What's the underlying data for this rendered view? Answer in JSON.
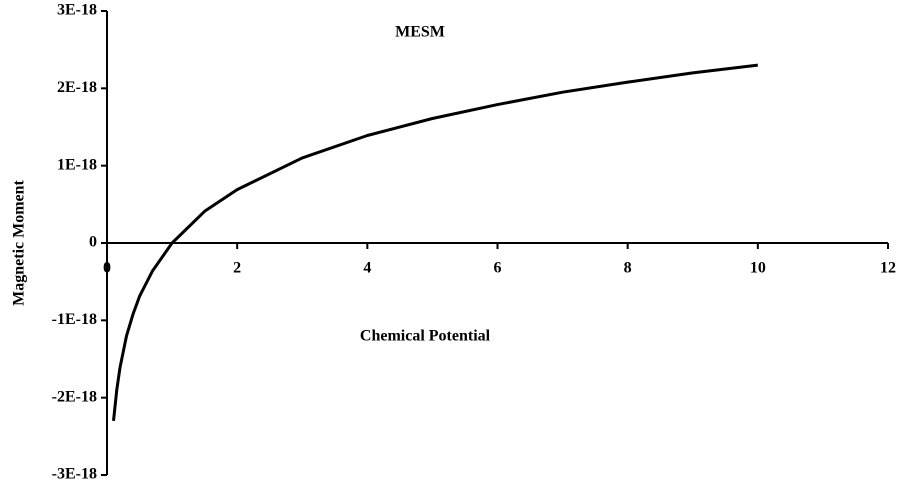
{
  "chart_data": {
    "type": "line",
    "title": "MESM",
    "x_label": "Chemical Potential",
    "y_label": "Magnetic Moment",
    "x": [
      0.1,
      0.15,
      0.2,
      0.3,
      0.4,
      0.5,
      0.7,
      1,
      1.5,
      2,
      3,
      4,
      5,
      6,
      7,
      8,
      9,
      10
    ],
    "series": [
      {
        "name": "MESM",
        "color": "#000000",
        "values": [
          -2.3e-18,
          -1.9e-18,
          -1.61e-18,
          -1.2e-18,
          -9.2e-19,
          -6.9e-19,
          -3.6e-19,
          0,
          4.1e-19,
          6.9e-19,
          1.1e-18,
          1.39e-18,
          1.61e-18,
          1.79e-18,
          1.95e-18,
          2.08e-18,
          2.2e-18,
          2.3e-18
        ]
      }
    ],
    "xlim": [
      0,
      12
    ],
    "xticks": [
      0,
      2,
      4,
      6,
      8,
      10,
      12
    ],
    "ylim": [
      -3e-18,
      3e-18
    ],
    "yticks": [
      {
        "value": -3e-18,
        "label": "-3E-18"
      },
      {
        "value": -2e-18,
        "label": "-2E-18"
      },
      {
        "value": -1e-18,
        "label": "-1E-18"
      },
      0,
      {
        "value": 1e-18,
        "label": "1E-18"
      },
      {
        "value": 2e-18,
        "label": "2E-18"
      },
      {
        "value": 3e-18,
        "label": "3E-18"
      }
    ],
    "grid": false
  }
}
